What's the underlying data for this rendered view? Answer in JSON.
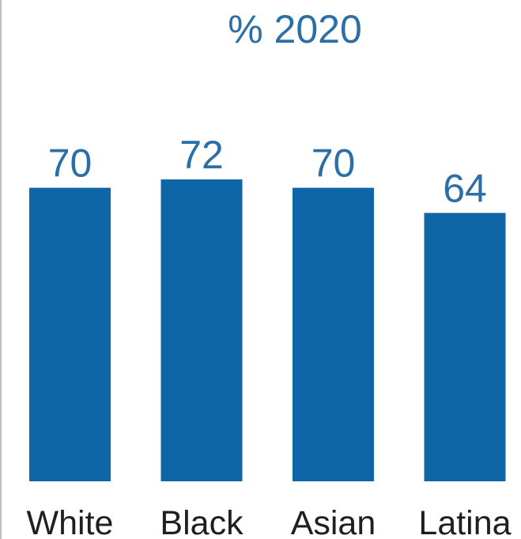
{
  "chart_data": {
    "type": "bar",
    "title": "% 2020",
    "categories": [
      "White",
      "Black",
      "Asian",
      "Latina"
    ],
    "values": [
      70,
      72,
      70,
      64
    ],
    "data_labels": [
      "70",
      "72",
      "70",
      "64"
    ],
    "xlabel": "",
    "ylabel": "",
    "ylim": [
      0,
      72
    ],
    "grid": false,
    "legend": "none"
  },
  "colors": {
    "bar": "#0e66a6",
    "title": "#2a6fa8",
    "data_label": "#2a6fa8",
    "category_label": "#1f1f1f"
  }
}
